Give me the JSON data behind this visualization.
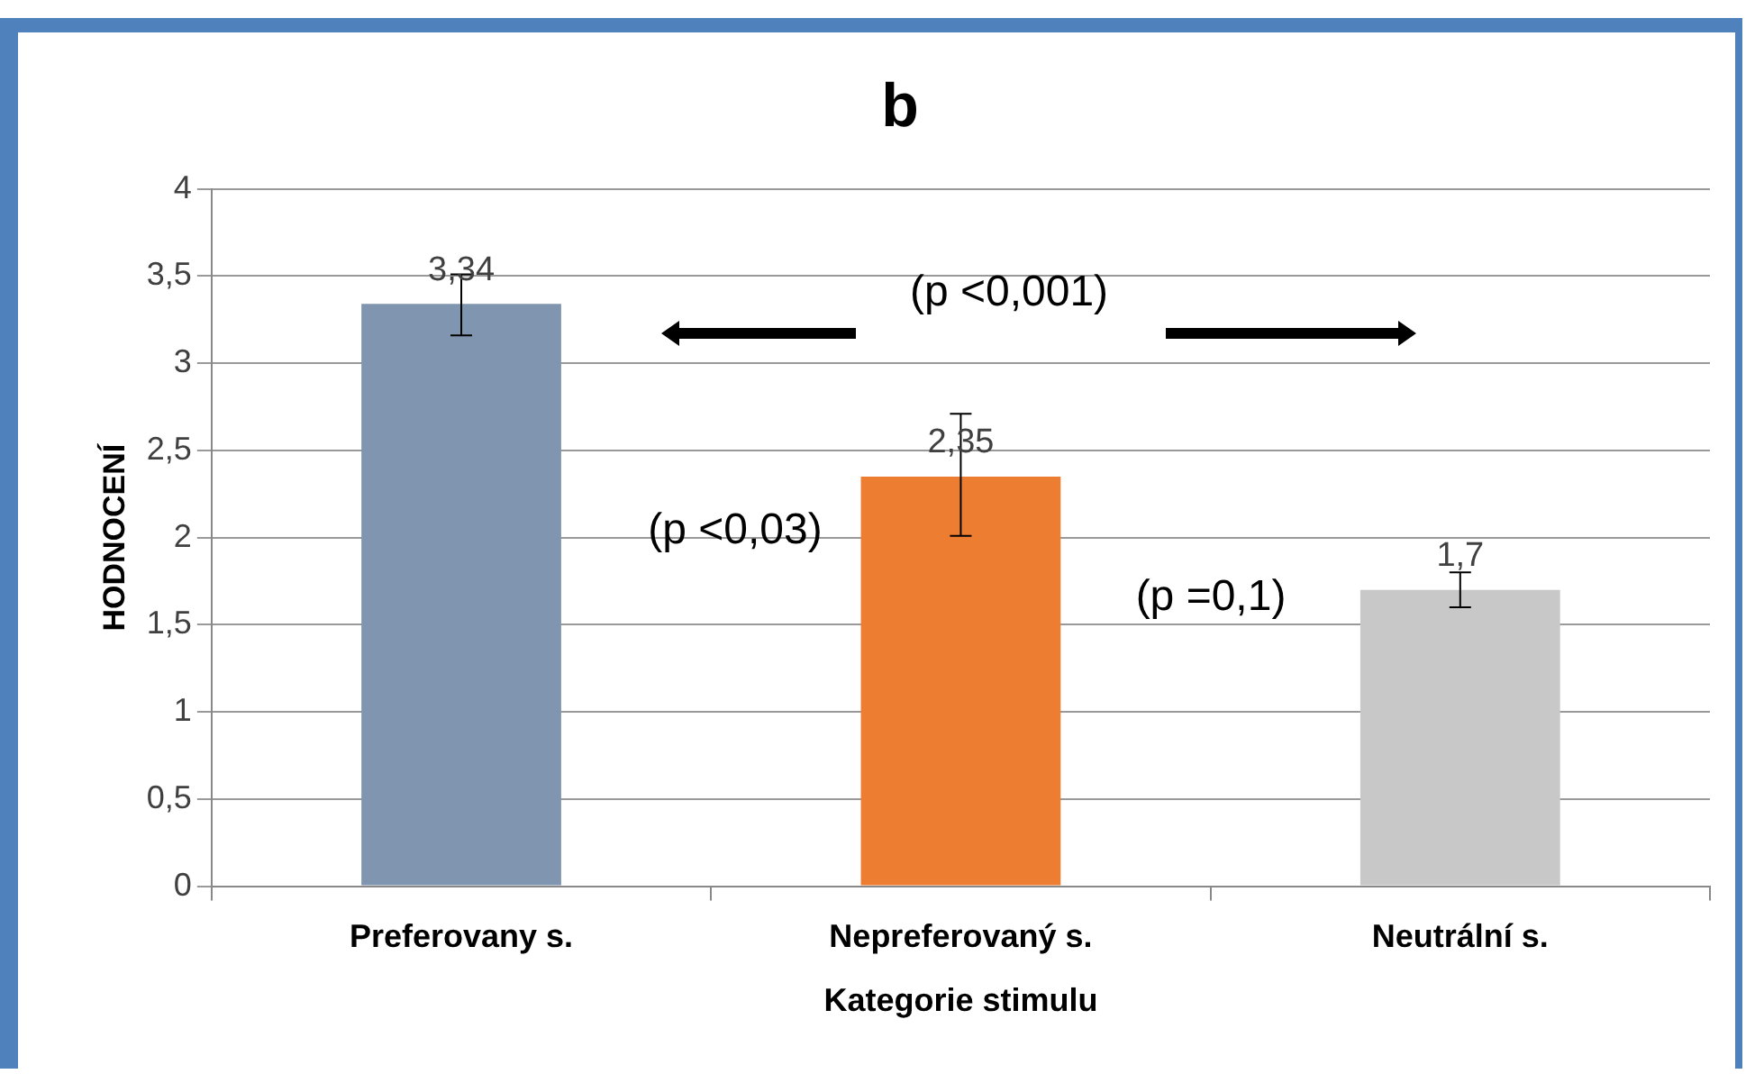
{
  "chart_data": {
    "type": "bar",
    "title": "b",
    "xlabel": "Kategorie stimulu",
    "ylabel": "HODNOCENÍ",
    "categories": [
      "Preferovany s.",
      "Nepreferovaný s.",
      "Neutrální s."
    ],
    "values": [
      3.34,
      2.35,
      1.7
    ],
    "colors": [
      "#8096b0",
      "#ed7d31",
      "#c8c8c8"
    ],
    "errors": [
      [
        3.16,
        3.51
      ],
      [
        2.01,
        2.71
      ],
      [
        1.6,
        1.8
      ]
    ],
    "value_labels": [
      "3,34",
      "2,35",
      "1,7"
    ],
    "ylim": [
      0,
      4
    ],
    "yticks": [
      {
        "value": 0,
        "label": "0"
      },
      {
        "value": 0.5,
        "label": "0,5"
      },
      {
        "value": 1,
        "label": "1"
      },
      {
        "value": 1.5,
        "label": "1,5"
      },
      {
        "value": 2,
        "label": "2"
      },
      {
        "value": 2.5,
        "label": "2,5"
      },
      {
        "value": 3,
        "label": "3"
      },
      {
        "value": 3.5,
        "label": "3,5"
      },
      {
        "value": 4,
        "label": "4"
      }
    ],
    "grid": "y",
    "legend": false,
    "annotations": [
      "(p <0,001)",
      "(p <0,03)",
      "(p =0,1)"
    ]
  }
}
